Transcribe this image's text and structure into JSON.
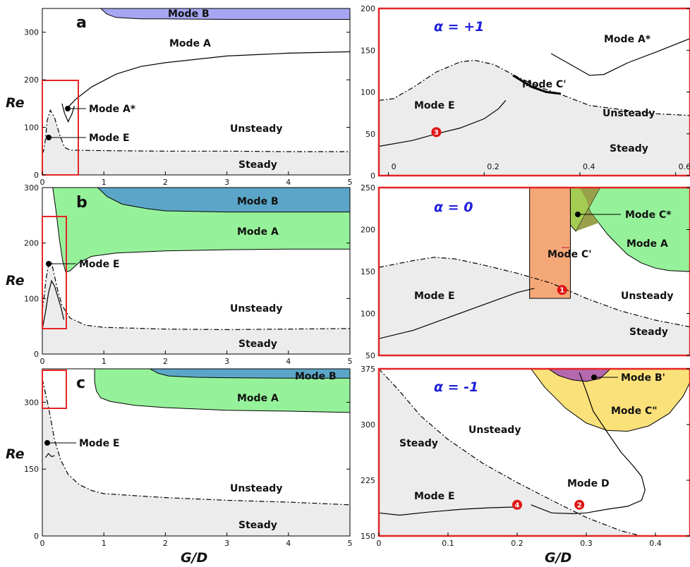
{
  "colors": {
    "steady": "#ececec",
    "mode_a": "#96f29a",
    "mode_b_top": "#a6a6f2",
    "mode_b": "#5ba6c8",
    "mode_c_prime": "#f5a877",
    "mode_c_star": "#a4cc52",
    "mode_c_overlap": "#98a04a",
    "mode_b_prime": "#b469ae",
    "mode_c_dprime": "#fbe17a",
    "frame_red": "#e52424",
    "alpha_blue": "#1f1fdc",
    "marker_red": "#e01414"
  },
  "chart_data": [
    {
      "id": "a",
      "panel_label": "a",
      "type": "area",
      "xlim": [
        0,
        5
      ],
      "ylim": [
        0,
        350
      ],
      "x_ticks": [
        "0",
        "1",
        "2",
        "3",
        "4",
        "5"
      ],
      "y_ticks": [
        0,
        100,
        200,
        300
      ],
      "ylabel": "Re",
      "regions": [
        "Mode B",
        "Mode A",
        "Mode A*",
        "Mode E",
        "Unsteady",
        "Steady"
      ],
      "boundaries": {
        "steady": [
          [
            0.0,
            45
          ],
          [
            0.02,
            50
          ],
          [
            0.05,
            75
          ],
          [
            0.08,
            115
          ],
          [
            0.13,
            136
          ],
          [
            0.2,
            120
          ],
          [
            0.28,
            85
          ],
          [
            0.36,
            58
          ],
          [
            0.45,
            52
          ],
          [
            1,
            51
          ],
          [
            2,
            50
          ],
          [
            3,
            50
          ],
          [
            4,
            49
          ],
          [
            5,
            49
          ]
        ],
        "mode_a": [
          [
            0.4,
            140
          ],
          [
            0.55,
            160
          ],
          [
            0.8,
            185
          ],
          [
            1.2,
            212
          ],
          [
            1.6,
            228
          ],
          [
            2,
            236
          ],
          [
            3,
            250
          ],
          [
            4,
            256
          ],
          [
            5,
            259
          ]
        ],
        "mode_b": [
          [
            0.95,
            350
          ],
          [
            1.05,
            338
          ],
          [
            1.2,
            331
          ],
          [
            1.6,
            328
          ],
          [
            2,
            328
          ],
          [
            3,
            327
          ],
          [
            4,
            327
          ],
          [
            5,
            327
          ]
        ],
        "mode_a_star": [
          [
            0.32,
            150
          ],
          [
            0.36,
            130
          ],
          [
            0.42,
            112
          ],
          [
            0.48,
            128
          ],
          [
            0.52,
            145
          ]
        ]
      }
    },
    {
      "id": "b",
      "panel_label": "b",
      "type": "area",
      "xlim": [
        0,
        5
      ],
      "ylim": [
        0,
        300
      ],
      "x_ticks": [
        "0",
        "1",
        "2",
        "3",
        "4",
        "5"
      ],
      "y_ticks": [
        0,
        100,
        200,
        300
      ],
      "ylabel": "Re",
      "regions": [
        "Mode B",
        "Mode A",
        "Mode E",
        "Unsteady",
        "Steady"
      ],
      "boundaries": {
        "steady": [
          [
            0.0,
            80
          ],
          [
            0.03,
            105
          ],
          [
            0.06,
            135
          ],
          [
            0.1,
            160
          ],
          [
            0.15,
            165
          ],
          [
            0.2,
            140
          ],
          [
            0.25,
            115
          ],
          [
            0.32,
            88
          ],
          [
            0.45,
            65
          ],
          [
            0.7,
            52
          ],
          [
            1,
            48
          ],
          [
            2,
            45
          ],
          [
            3,
            44
          ],
          [
            4,
            45
          ],
          [
            5,
            46
          ]
        ],
        "mode_a": [
          [
            0.17,
            300
          ],
          [
            0.22,
            260
          ],
          [
            0.28,
            205
          ],
          [
            0.33,
            168
          ],
          [
            0.38,
            148
          ],
          [
            0.45,
            150
          ],
          [
            0.6,
            165
          ],
          [
            0.8,
            176
          ],
          [
            1.2,
            182
          ],
          [
            2,
            186
          ],
          [
            3,
            188
          ],
          [
            4,
            189
          ],
          [
            5,
            189
          ]
        ],
        "mode_b": [
          [
            0.9,
            300
          ],
          [
            1.05,
            284
          ],
          [
            1.3,
            270
          ],
          [
            1.7,
            262
          ],
          [
            2,
            258
          ],
          [
            3,
            256
          ],
          [
            4,
            256
          ],
          [
            5,
            256
          ]
        ],
        "mode_e": [
          [
            0.0,
            45
          ],
          [
            0.05,
            75
          ],
          [
            0.1,
            110
          ],
          [
            0.15,
            132
          ],
          [
            0.2,
            122
          ],
          [
            0.3,
            85
          ],
          [
            0.35,
            62
          ]
        ]
      }
    },
    {
      "id": "c",
      "panel_label": "c",
      "type": "area",
      "xlim": [
        0,
        5
      ],
      "ylim": [
        0,
        375
      ],
      "x_ticks": [
        "0",
        "1",
        "2",
        "3",
        "4",
        "5"
      ],
      "y_ticks": [
        0,
        150,
        300
      ],
      "xlabel": "G/D",
      "ylabel": "Re",
      "regions": [
        "Mode B",
        "Mode A",
        "Mode E",
        "Unsteady",
        "Steady"
      ],
      "boundaries": {
        "steady": [
          [
            0.0,
            352
          ],
          [
            0.1,
            290
          ],
          [
            0.2,
            215
          ],
          [
            0.3,
            170
          ],
          [
            0.42,
            138
          ],
          [
            0.6,
            115
          ],
          [
            0.8,
            102
          ],
          [
            1,
            95
          ],
          [
            2,
            86
          ],
          [
            3,
            80
          ],
          [
            4,
            76
          ],
          [
            5,
            70
          ]
        ],
        "mode_a": [
          [
            0.85,
            375
          ],
          [
            0.85,
            345
          ],
          [
            0.88,
            325
          ],
          [
            0.95,
            310
          ],
          [
            1.1,
            302
          ],
          [
            1.5,
            293
          ],
          [
            2,
            288
          ],
          [
            3,
            282
          ],
          [
            4,
            280
          ],
          [
            5,
            277
          ]
        ],
        "mode_b": [
          [
            1.75,
            375
          ],
          [
            1.88,
            365
          ],
          [
            2.05,
            359
          ],
          [
            2.5,
            356
          ],
          [
            3,
            355
          ],
          [
            4,
            354
          ],
          [
            5,
            354
          ]
        ],
        "mode_e": [
          [
            0.05,
            176
          ],
          [
            0.1,
            185
          ],
          [
            0.15,
            178
          ],
          [
            0.2,
            180
          ]
        ]
      }
    },
    {
      "id": "a-zoom",
      "type": "area",
      "alpha_label": "α = +1",
      "xlim": [
        -0.02,
        0.63
      ],
      "ylim": [
        0,
        200
      ],
      "x_ticks": [
        0,
        0.2,
        0.4,
        0.6
      ],
      "y_ticks": [
        0,
        50,
        100,
        150,
        200
      ],
      "regions": [
        "Mode A*",
        "Mode C'",
        "Mode E",
        "Unsteady",
        "Steady"
      ],
      "boundaries": {
        "steady": [
          [
            -0.02,
            90
          ],
          [
            0.01,
            92
          ],
          [
            0.05,
            105
          ],
          [
            0.1,
            124
          ],
          [
            0.15,
            136
          ],
          [
            0.18,
            138
          ],
          [
            0.22,
            133
          ],
          [
            0.27,
            118
          ],
          [
            0.32,
            105
          ],
          [
            0.37,
            95
          ],
          [
            0.42,
            84
          ],
          [
            0.5,
            78
          ],
          [
            0.56,
            74
          ],
          [
            0.63,
            72
          ]
        ],
        "mode_e": [
          [
            -0.02,
            35
          ],
          [
            0.05,
            42
          ],
          [
            0.1,
            50
          ],
          [
            0.15,
            57
          ],
          [
            0.2,
            68
          ],
          [
            0.23,
            80
          ],
          [
            0.245,
            90
          ]
        ],
        "mode_c_prime": [
          [
            0.26,
            120
          ],
          [
            0.3,
            106
          ],
          [
            0.33,
            100
          ],
          [
            0.36,
            98
          ]
        ],
        "mode_a_star": [
          [
            0.34,
            146
          ],
          [
            0.38,
            133
          ],
          [
            0.42,
            120
          ],
          [
            0.45,
            121
          ],
          [
            0.5,
            135
          ],
          [
            0.56,
            148
          ],
          [
            0.63,
            164
          ]
        ]
      },
      "markers": [
        {
          "label": "3",
          "x": 0.1,
          "y": 52
        }
      ]
    },
    {
      "id": "b-zoom",
      "type": "area",
      "alpha_label": "α = 0",
      "xlim": [
        0,
        0.45
      ],
      "ylim": [
        50,
        250
      ],
      "y_ticks": [
        50,
        100,
        150,
        200,
        250
      ],
      "regions": [
        "Mode C*",
        "Mode A",
        "Mode C'",
        "Mode E",
        "Unsteady",
        "Steady"
      ],
      "boundaries": {
        "steady": [
          [
            0,
            155
          ],
          [
            0.05,
            163
          ],
          [
            0.08,
            167
          ],
          [
            0.11,
            165
          ],
          [
            0.15,
            158
          ],
          [
            0.2,
            148
          ],
          [
            0.25,
            136
          ],
          [
            0.3,
            118
          ],
          [
            0.35,
            103
          ],
          [
            0.4,
            92
          ],
          [
            0.45,
            84
          ]
        ],
        "mode_e": [
          [
            0,
            70
          ],
          [
            0.05,
            80
          ],
          [
            0.1,
            95
          ],
          [
            0.15,
            110
          ],
          [
            0.2,
            125
          ],
          [
            0.225,
            130
          ]
        ],
        "mode_c_prime_x": [
          0.218,
          0.277
        ],
        "mode_a": [
          [
            0.29,
            250
          ],
          [
            0.3,
            236
          ],
          [
            0.305,
            222
          ],
          [
            0.318,
            208
          ],
          [
            0.33,
            195
          ],
          [
            0.345,
            182
          ],
          [
            0.36,
            170
          ],
          [
            0.38,
            160
          ],
          [
            0.4,
            154
          ],
          [
            0.42,
            151
          ],
          [
            0.45,
            150
          ]
        ],
        "mode_c_star": [
          [
            0.233,
            250
          ],
          [
            0.245,
            237
          ],
          [
            0.258,
            225
          ],
          [
            0.27,
            212
          ],
          [
            0.285,
            198
          ],
          [
            0.305,
            228
          ],
          [
            0.32,
            250
          ]
        ]
      },
      "markers": [
        {
          "label": "1",
          "x": 0.265,
          "y": 128
        }
      ]
    },
    {
      "id": "c-zoom",
      "type": "area",
      "alpha_label": "α = -1",
      "xlim": [
        0,
        0.45
      ],
      "ylim": [
        150,
        375
      ],
      "x_ticks": [
        0,
        0.1,
        0.2,
        0.3,
        0.4
      ],
      "y_ticks": [
        150,
        225,
        300,
        375
      ],
      "xlabel": "G/D",
      "regions": [
        "Mode B'",
        "Mode C\"",
        "Mode D",
        "Unsteady",
        "Steady",
        "Mode E"
      ],
      "boundaries": {
        "steady": [
          [
            0,
            375
          ],
          [
            0.03,
            345
          ],
          [
            0.06,
            312
          ],
          [
            0.1,
            280
          ],
          [
            0.15,
            248
          ],
          [
            0.2,
            222
          ],
          [
            0.25,
            198
          ],
          [
            0.3,
            175
          ],
          [
            0.35,
            157
          ],
          [
            0.38,
            150
          ]
        ],
        "mode_e": [
          [
            0,
            181
          ],
          [
            0.03,
            178
          ],
          [
            0.07,
            182
          ],
          [
            0.12,
            186
          ],
          [
            0.16,
            188
          ],
          [
            0.2,
            189
          ]
        ],
        "mode_c_dprime": [
          [
            0.22,
            375
          ],
          [
            0.24,
            350
          ],
          [
            0.27,
            322
          ],
          [
            0.3,
            302
          ],
          [
            0.33,
            292
          ],
          [
            0.36,
            291
          ],
          [
            0.39,
            298
          ],
          [
            0.42,
            315
          ],
          [
            0.44,
            338
          ],
          [
            0.45,
            357
          ],
          [
            0.45,
            375
          ]
        ],
        "mode_b_prime": [
          [
            0.245,
            375
          ],
          [
            0.26,
            366
          ],
          [
            0.28,
            360
          ],
          [
            0.3,
            358
          ],
          [
            0.32,
            362
          ],
          [
            0.335,
            375
          ]
        ],
        "mode_d": [
          [
            0.29,
            370
          ],
          [
            0.3,
            345
          ],
          [
            0.31,
            318
          ],
          [
            0.33,
            290
          ],
          [
            0.35,
            263
          ],
          [
            0.37,
            242
          ],
          [
            0.38,
            230
          ],
          [
            0.385,
            212
          ],
          [
            0.38,
            198
          ],
          [
            0.36,
            190
          ],
          [
            0.33,
            186
          ],
          [
            0.3,
            181
          ],
          [
            0.28,
            180
          ],
          [
            0.25,
            181
          ],
          [
            0.22,
            192
          ]
        ]
      },
      "markers": [
        {
          "label": "4",
          "x": 0.2,
          "y": 192
        },
        {
          "label": "2",
          "x": 0.29,
          "y": 192
        }
      ]
    }
  ]
}
